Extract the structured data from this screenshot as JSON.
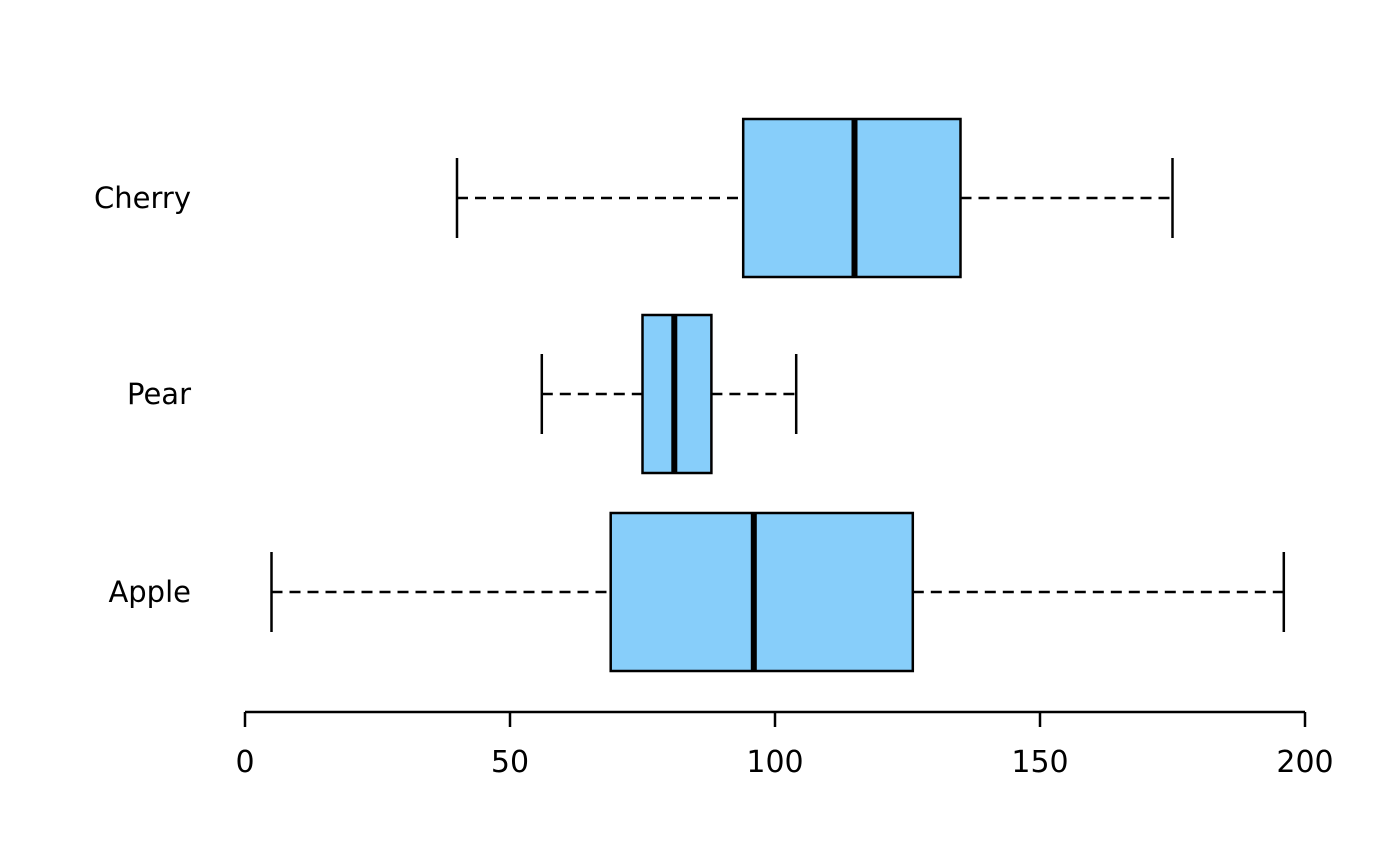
{
  "chart_data": {
    "type": "boxplot",
    "orientation": "horizontal",
    "title": "",
    "xlabel": "",
    "ylabel": "",
    "categories": [
      "Cherry",
      "Pear",
      "Apple"
    ],
    "series": [
      {
        "name": "Cherry",
        "min": 40,
        "q1": 94,
        "median": 115,
        "q3": 135,
        "max": 175
      },
      {
        "name": "Pear",
        "min": 56,
        "q1": 75,
        "median": 81,
        "q3": 88,
        "max": 104
      },
      {
        "name": "Apple",
        "min": 5,
        "q1": 69,
        "median": 96,
        "q3": 126,
        "max": 196
      }
    ],
    "x_ticks": [
      "0",
      "50",
      "100",
      "150",
      "200"
    ],
    "x_tick_values": [
      0,
      50,
      100,
      150,
      200
    ],
    "xlim": [
      0,
      200
    ],
    "grid": false,
    "legend": "none",
    "box_fill_color": "#87CEFA",
    "line_color": "#000000",
    "background_color": "#ffffff"
  }
}
